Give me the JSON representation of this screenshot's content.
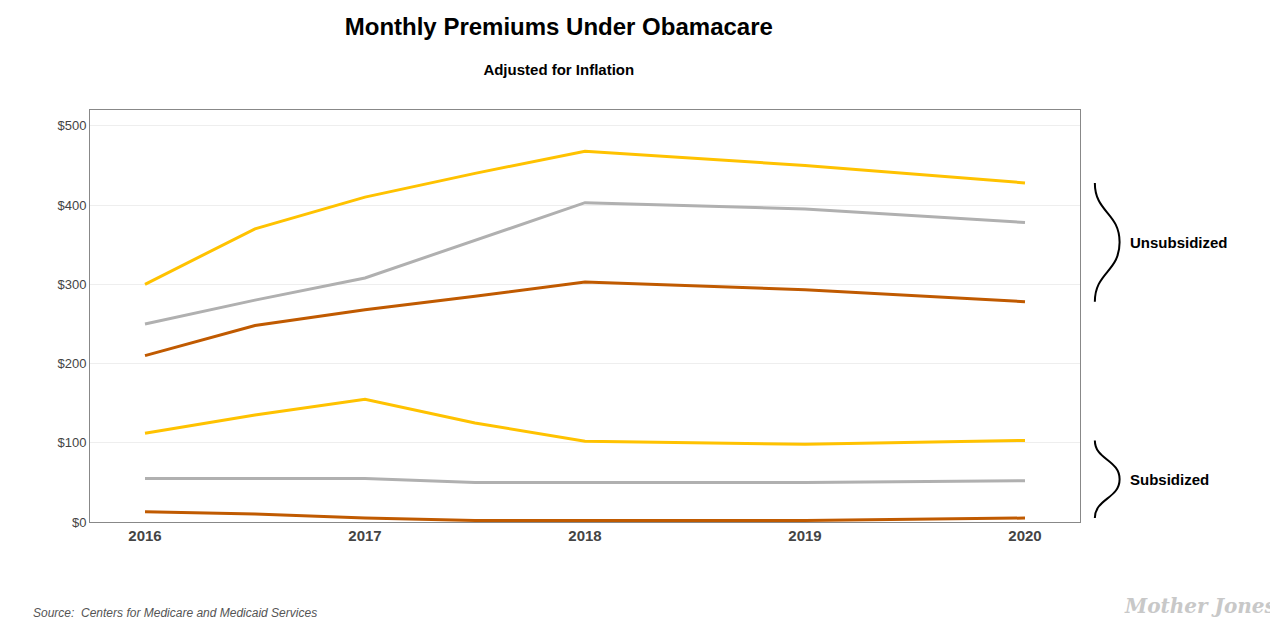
{
  "chart_data": {
    "type": "line",
    "title": "Monthly Premiums Under Obamacare",
    "subtitle": "Adjusted for Inflation",
    "source": "Source:  Centers for Medicare and Medicaid Services",
    "watermark": "Mother Jones",
    "x": [
      2016,
      2016.5,
      2017,
      2017.5,
      2018,
      2019,
      2020
    ],
    "series": [
      {
        "color": "#FFC200",
        "values": [
          300,
          370,
          410,
          440,
          468,
          450,
          428
        ]
      },
      {
        "color": "#B0B0B0",
        "values": [
          250,
          280,
          308,
          355,
          403,
          395,
          378
        ]
      },
      {
        "color": "#C05A00",
        "values": [
          210,
          248,
          268,
          285,
          303,
          293,
          278
        ]
      },
      {
        "color": "#FFC200",
        "values": [
          112,
          135,
          155,
          125,
          102,
          98,
          103
        ]
      },
      {
        "color": "#B0B0B0",
        "values": [
          55,
          55,
          55,
          50,
          50,
          50,
          52
        ]
      },
      {
        "color": "#C05A00",
        "values": [
          13,
          10,
          5,
          2,
          2,
          2,
          5
        ]
      }
    ],
    "annotations": [
      {
        "text": "Unsubsidized",
        "y": [
          278,
          428
        ]
      },
      {
        "text": "Subsidized",
        "y": [
          5,
          103
        ]
      }
    ],
    "xlim": [
      2015.75,
      2020.25
    ],
    "xticks": [
      2016,
      2017,
      2018,
      2019,
      2020
    ],
    "ylim": [
      0,
      520
    ],
    "yticks": [
      {
        "value": 0,
        "label": "$0"
      },
      {
        "value": 100,
        "label": "$100"
      },
      {
        "value": 200,
        "label": "$200"
      },
      {
        "value": 300,
        "label": "$300"
      },
      {
        "value": 400,
        "label": "$400"
      },
      {
        "value": 500,
        "label": "$500"
      }
    ],
    "grid": true
  }
}
